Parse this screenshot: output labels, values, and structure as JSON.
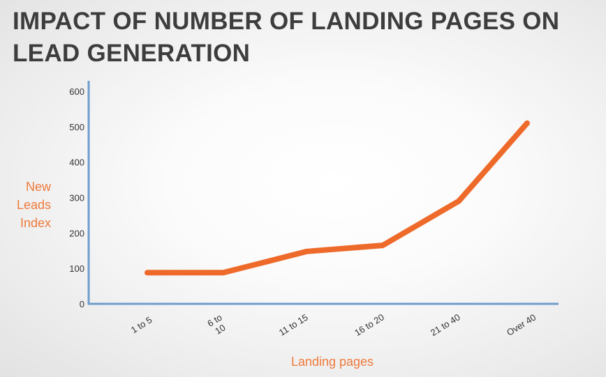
{
  "title": "IMPACT OF NUMBER OF LANDING PAGES ON LEAD GENERATION",
  "colors": {
    "title": "#3d3d3d",
    "line": "#ee6a2a",
    "axis": "#6f9ccc",
    "axis_title": "#ee7a3b"
  },
  "chart_data": {
    "type": "line",
    "categories": [
      [
        "1 to 5"
      ],
      [
        "6 to",
        "10"
      ],
      [
        "11 to 15"
      ],
      [
        "16 to 20"
      ],
      [
        "21 to 40"
      ],
      [
        "Over 40"
      ]
    ],
    "series": [
      {
        "points": [
          {
            "x": 0.0,
            "y": 88
          },
          {
            "x": 1.0,
            "y": 88
          },
          {
            "x": 2.1,
            "y": 148
          },
          {
            "x": 3.1,
            "y": 165
          },
          {
            "x": 4.1,
            "y": 290
          },
          {
            "x": 5.0,
            "y": 510
          }
        ]
      }
    ],
    "xlabel": "Landing pages",
    "ylabel": [
      "New",
      "Leads",
      "Index"
    ],
    "yticks": [
      0,
      100,
      200,
      300,
      400,
      500,
      600
    ],
    "ylim": [
      0,
      600
    ],
    "grid": false,
    "legend": "none"
  }
}
